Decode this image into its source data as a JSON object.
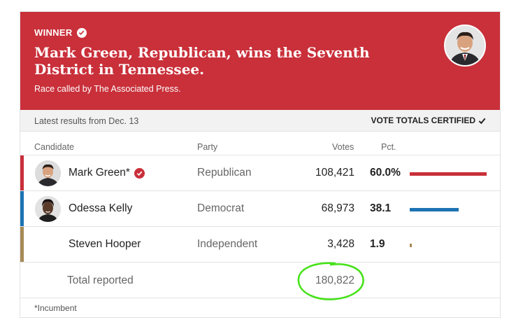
{
  "banner": {
    "winner_label": "WINNER",
    "headline": "Mark Green, Republican, wins the Seventh District in Tennessee.",
    "subtext": "Race called by The Associated Press.",
    "color": "#c9303a"
  },
  "status": {
    "latest": "Latest results from Dec. 13",
    "certified": "VOTE TOTALS CERTIFIED"
  },
  "columns": {
    "candidate": "Candidate",
    "party": "Party",
    "votes": "Votes",
    "pct": "Pct."
  },
  "candidates": [
    {
      "name": "Mark Green*",
      "party": "Republican",
      "votes": "108,421",
      "pct": "60.0%",
      "pct_value": 60.0,
      "color": "#c9303a",
      "winner": true
    },
    {
      "name": "Odessa Kelly",
      "party": "Democrat",
      "votes": "68,973",
      "pct": "38.1",
      "pct_value": 38.1,
      "color": "#1d73b3",
      "winner": false
    },
    {
      "name": "Steven Hooper",
      "party": "Independent",
      "votes": "3,428",
      "pct": "1.9",
      "pct_value": 1.9,
      "color": "#a68a57",
      "winner": false
    }
  ],
  "total": {
    "label": "Total reported",
    "value": "180,822"
  },
  "footnote": "*Incumbent"
}
